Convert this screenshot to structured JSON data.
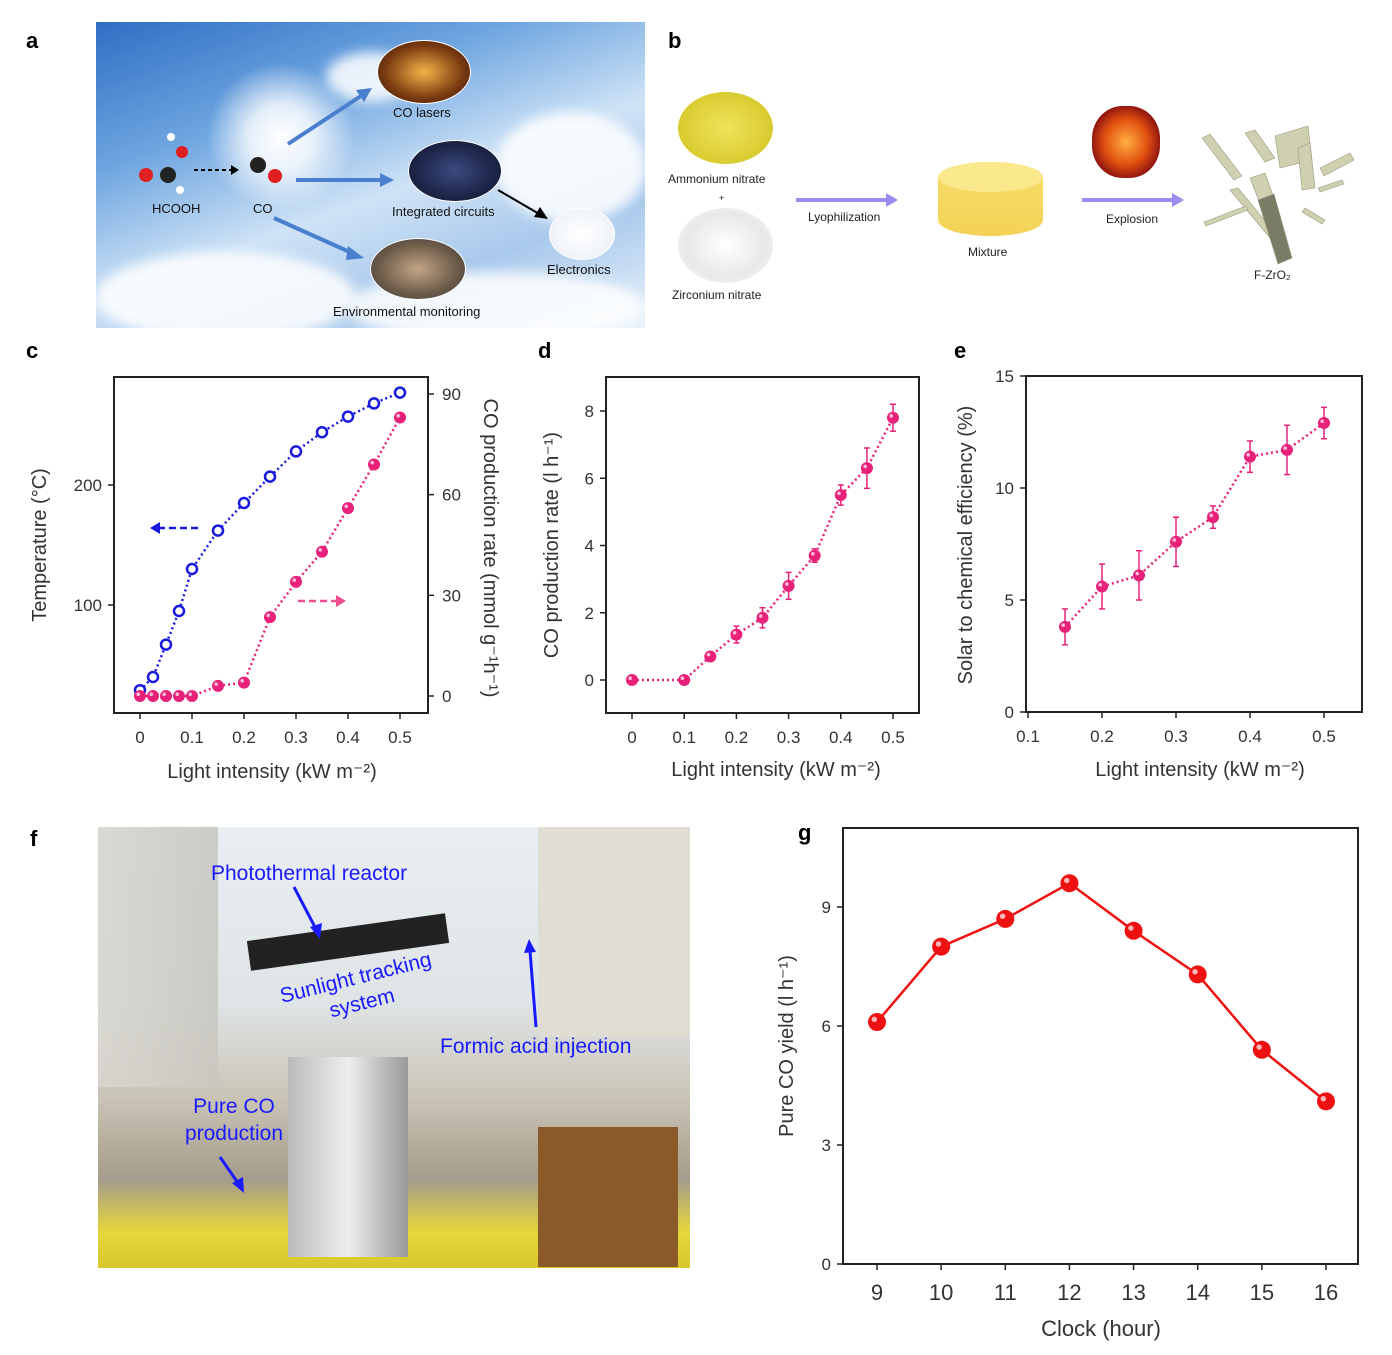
{
  "panel_labels": [
    "a",
    "b",
    "c",
    "d",
    "e",
    "f",
    "g"
  ],
  "panel_a": {
    "molecules": {
      "left": "HCOOH",
      "right": "CO"
    },
    "applications": [
      "CO lasers",
      "Integrated circuits",
      "Electronics",
      "Environmental monitoring"
    ]
  },
  "panel_b": {
    "reactant_1": "Ammonium nitrate",
    "plus": "+",
    "reactant_2": "Zirconium nitrate",
    "step_1": "Lyophilization",
    "intermediate": "Mixture",
    "step_2": "Explosion",
    "product": "F-ZrO₂"
  },
  "panel_f": {
    "labels": [
      "Photothermal reactor",
      "Sunlight tracking system",
      "Formic acid injection",
      "Pure CO production"
    ],
    "label_color": "#1a1aff"
  },
  "chart_data": [
    {
      "id": "c",
      "type": "line",
      "xlabel": "Light intensity (kW m⁻²)",
      "xticks": [
        "0",
        "0.1",
        "0.2",
        "0.3",
        "0.4",
        "0.5"
      ],
      "xlim": [
        0,
        0.5
      ],
      "series": [
        {
          "name": "Temperature",
          "axis": "left",
          "color": "#1a1adf",
          "marker": "open-circle",
          "x": [
            0,
            0.025,
            0.05,
            0.075,
            0.1,
            0.15,
            0.2,
            0.25,
            0.3,
            0.35,
            0.4,
            0.45,
            0.5
          ],
          "y": [
            29,
            40,
            67,
            95,
            130,
            162,
            185,
            207,
            228,
            244,
            257,
            268,
            277
          ]
        },
        {
          "name": "CO production rate",
          "axis": "right",
          "color": "#e8227a",
          "marker": "filled-circle",
          "x": [
            0,
            0.025,
            0.05,
            0.075,
            0.1,
            0.15,
            0.2,
            0.25,
            0.3,
            0.35,
            0.4,
            0.45,
            0.5
          ],
          "y": [
            0,
            0,
            0,
            0,
            0,
            3,
            4,
            23.5,
            34,
            43,
            56,
            69,
            83
          ]
        }
      ],
      "ylabel_left": "Temperature (°C)",
      "yticks_left": [
        "100",
        "200"
      ],
      "ylabel_right": "CO production rate (mmol g⁻¹h⁻¹)",
      "yticks_right": [
        "0",
        "30",
        "60",
        "90"
      ]
    },
    {
      "id": "d",
      "type": "line",
      "xlabel": "Light intensity (kW m⁻²)",
      "ylabel": "CO production rate (l h⁻¹)",
      "xticks": [
        "0",
        "0.1",
        "0.2",
        "0.3",
        "0.4",
        "0.5"
      ],
      "yticks": [
        "0",
        "2",
        "4",
        "6",
        "8"
      ],
      "xlim": [
        0,
        0.5
      ],
      "ylim": [
        -1,
        9
      ],
      "series": [
        {
          "name": "CO production rate",
          "color": "#e8227a",
          "x": [
            0,
            0.1,
            0.15,
            0.2,
            0.25,
            0.3,
            0.35,
            0.4,
            0.45,
            0.5
          ],
          "y": [
            0,
            0,
            0.7,
            1.35,
            1.85,
            2.8,
            3.7,
            5.5,
            6.3,
            7.8
          ],
          "err": [
            0,
            0,
            0.1,
            0.25,
            0.3,
            0.4,
            0.2,
            0.3,
            0.6,
            0.4
          ]
        }
      ]
    },
    {
      "id": "e",
      "type": "line",
      "xlabel": "Light intensity (kW m⁻²)",
      "ylabel": "Solar to chemical efficiency (%)",
      "xticks": [
        "0.1",
        "0.2",
        "0.3",
        "0.4",
        "0.5"
      ],
      "yticks": [
        "0",
        "5",
        "10",
        "15"
      ],
      "xlim": [
        0.1,
        0.5
      ],
      "ylim": [
        0,
        15
      ],
      "series": [
        {
          "name": "Solar to chemical efficiency",
          "color": "#e8227a",
          "x": [
            0.15,
            0.2,
            0.25,
            0.3,
            0.35,
            0.4,
            0.45,
            0.5
          ],
          "y": [
            3.8,
            5.6,
            6.1,
            7.6,
            8.7,
            11.4,
            11.7,
            12.9
          ],
          "err": [
            0.8,
            1.0,
            1.1,
            1.1,
            0.5,
            0.7,
            1.1,
            0.7
          ]
        }
      ]
    },
    {
      "id": "g",
      "type": "line",
      "xlabel": "Clock (hour)",
      "ylabel": "Pure CO yield (l h⁻¹)",
      "xticks": [
        "9",
        "10",
        "11",
        "12",
        "13",
        "14",
        "15",
        "16"
      ],
      "yticks": [
        "0",
        "3",
        "6",
        "9"
      ],
      "xlim": [
        9,
        16
      ],
      "ylim": [
        0,
        11
      ],
      "series": [
        {
          "name": "Pure CO yield",
          "color": "#ee1111",
          "x": [
            9,
            10,
            11,
            12,
            13,
            14,
            15,
            16
          ],
          "y": [
            6.1,
            8.0,
            8.7,
            9.6,
            8.4,
            7.3,
            5.4,
            4.1
          ]
        }
      ]
    }
  ]
}
